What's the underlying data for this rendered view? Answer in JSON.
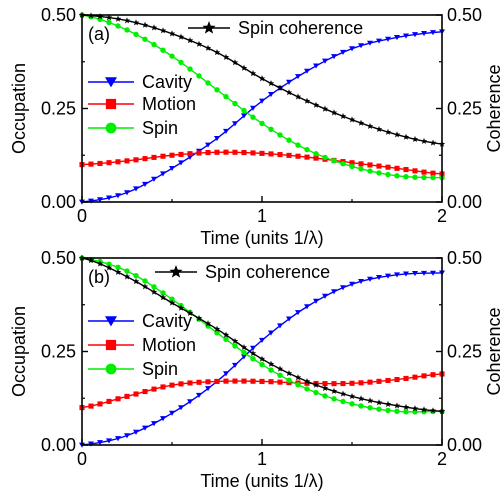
{
  "chart_data": [
    {
      "type": "line",
      "panel_label": "(a)",
      "xlabel": "Time (units 1/λ)",
      "ylabel": "Occupation",
      "ylabel_right": "Coherence",
      "xlim": [
        0,
        2
      ],
      "ylim": [
        0,
        0.5
      ],
      "xticks": [
        "0",
        "1",
        "2"
      ],
      "yticks": [
        "0.00",
        "0.25",
        "0.50"
      ],
      "yticks_right": [
        "0.00",
        "0.25",
        "0.50"
      ],
      "grid": false,
      "legend": {
        "placement": "left",
        "entries": [
          "Cavity",
          "Motion",
          "Spin"
        ]
      },
      "legend_top": {
        "placement": "top-right",
        "entries": [
          "Spin coherence"
        ]
      },
      "x": [
        0.0,
        0.25,
        0.5,
        0.75,
        1.0,
        1.25,
        1.5,
        1.75,
        2.0
      ],
      "series": [
        {
          "name": "Cavity",
          "color": "#0000ff",
          "marker": "triangle-down",
          "values": [
            0.0,
            0.025,
            0.09,
            0.17,
            0.27,
            0.35,
            0.41,
            0.44,
            0.455
          ]
        },
        {
          "name": "Motion",
          "color": "#ff0000",
          "marker": "square",
          "values": [
            0.1,
            0.11,
            0.125,
            0.133,
            0.13,
            0.12,
            0.105,
            0.09,
            0.075
          ]
        },
        {
          "name": "Spin",
          "color": "#00ee00",
          "marker": "circle",
          "values": [
            0.5,
            0.46,
            0.39,
            0.3,
            0.21,
            0.14,
            0.095,
            0.07,
            0.065
          ]
        },
        {
          "name": "Spin coherence",
          "color": "#000000",
          "marker": "star",
          "values": [
            0.5,
            0.485,
            0.45,
            0.4,
            0.33,
            0.27,
            0.22,
            0.18,
            0.155
          ]
        }
      ]
    },
    {
      "type": "line",
      "panel_label": "(b)",
      "xlabel": "Time (units 1/λ)",
      "ylabel": "Occupation",
      "ylabel_right": "Coherence",
      "xlim": [
        0,
        2
      ],
      "ylim": [
        0,
        0.5
      ],
      "xticks": [
        "0",
        "1",
        "2"
      ],
      "yticks": [
        "0.00",
        "0.25",
        "0.50"
      ],
      "yticks_right": [
        "0.00",
        "0.25",
        "0.50"
      ],
      "grid": false,
      "legend": {
        "placement": "left",
        "entries": [
          "Cavity",
          "Motion",
          "Spin"
        ]
      },
      "legend_top": {
        "placement": "top",
        "entries": [
          "Spin coherence"
        ]
      },
      "x": [
        0.0,
        0.25,
        0.5,
        0.75,
        1.0,
        1.25,
        1.5,
        1.75,
        2.0
      ],
      "series": [
        {
          "name": "Cavity",
          "color": "#0000ff",
          "marker": "triangle-down",
          "values": [
            0.0,
            0.025,
            0.085,
            0.17,
            0.28,
            0.37,
            0.43,
            0.455,
            0.46
          ]
        },
        {
          "name": "Motion",
          "color": "#ff0000",
          "marker": "square",
          "values": [
            0.1,
            0.13,
            0.16,
            0.17,
            0.17,
            0.165,
            0.165,
            0.175,
            0.19
          ]
        },
        {
          "name": "Spin",
          "color": "#00ee00",
          "marker": "circle",
          "values": [
            0.5,
            0.465,
            0.39,
            0.3,
            0.215,
            0.15,
            0.11,
            0.09,
            0.09
          ]
        },
        {
          "name": "Spin coherence",
          "color": "#000000",
          "marker": "star",
          "values": [
            0.5,
            0.45,
            0.38,
            0.31,
            0.23,
            0.17,
            0.13,
            0.105,
            0.09
          ]
        }
      ]
    }
  ]
}
